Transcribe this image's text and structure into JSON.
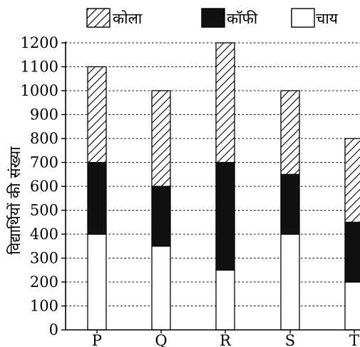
{
  "chart_data": {
    "type": "bar",
    "stacked": true,
    "title": "",
    "xlabel": "",
    "ylabel": "विद्यार्थियों की संख्या",
    "categories": [
      "P",
      "Q",
      "R",
      "S",
      "T"
    ],
    "ylim": [
      0,
      1200
    ],
    "yticks": [
      0,
      100,
      200,
      300,
      400,
      500,
      600,
      700,
      800,
      900,
      1000,
      1100,
      1200
    ],
    "grid": "horizontal-dashed",
    "legend_position": "top",
    "series": [
      {
        "name": "चाय",
        "fill": "white",
        "values": [
          400,
          350,
          250,
          400,
          200
        ]
      },
      {
        "name": "कॉफी",
        "fill": "black",
        "values": [
          300,
          250,
          450,
          250,
          250
        ]
      },
      {
        "name": "कोला",
        "fill": "diagonal-hatch",
        "values": [
          400,
          400,
          500,
          350,
          350
        ]
      }
    ],
    "legend_order": [
      "कोला",
      "कॉफी",
      "चाय"
    ],
    "colors": {
      "axis": "#000000",
      "grid": "#000000",
      "coffee": "#111111",
      "tea": "#ffffff",
      "cola_hatch": "#000000"
    }
  }
}
